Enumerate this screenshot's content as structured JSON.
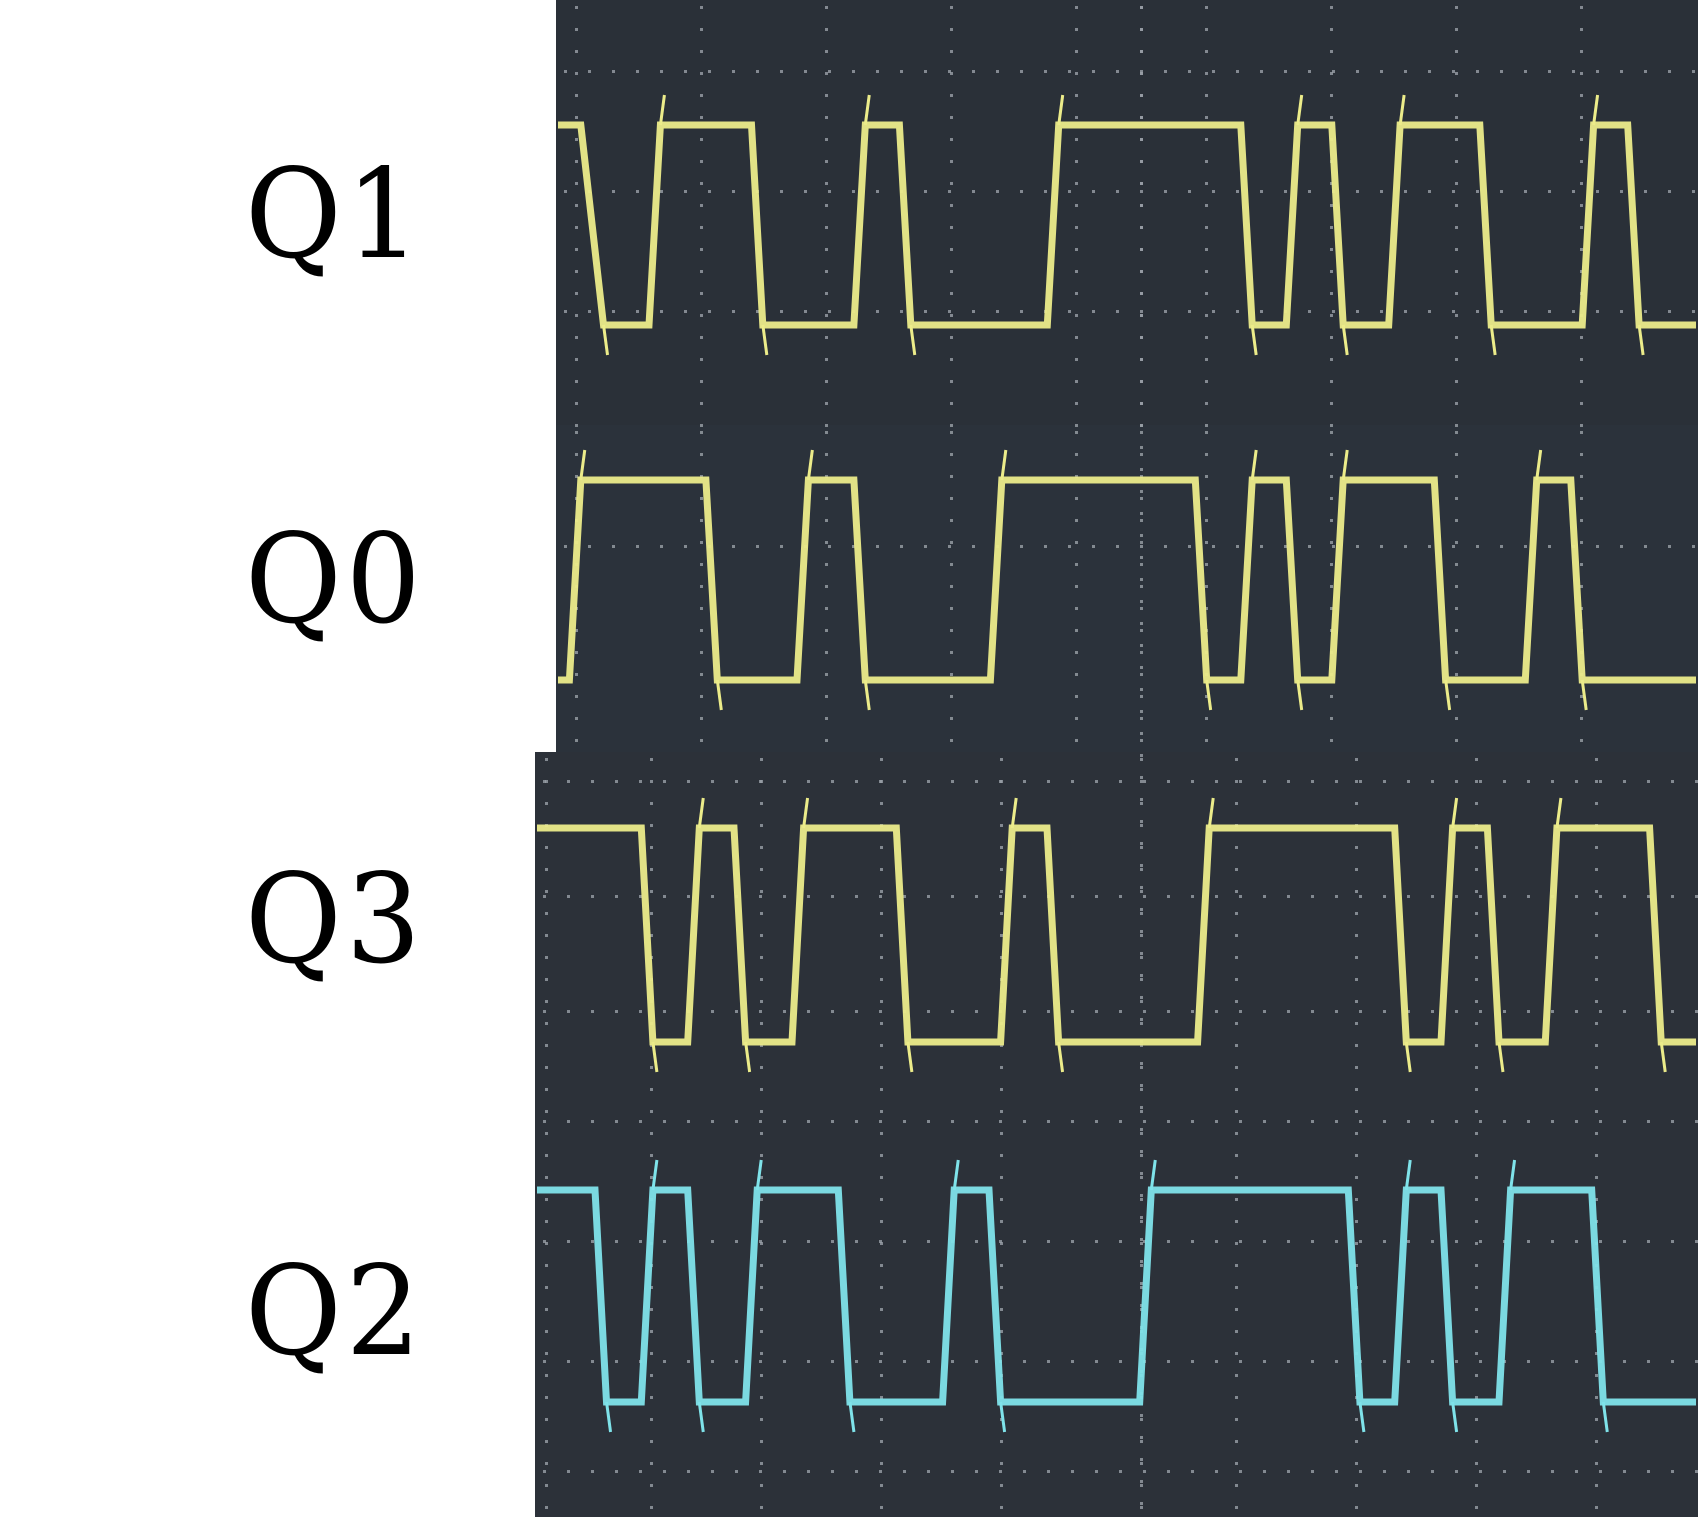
{
  "chart_data": {
    "type": "line",
    "title": "",
    "xlabel": "",
    "ylabel": "",
    "grid": true,
    "panels": [
      {
        "name": "Q1",
        "color": "#ecec8a",
        "segments": [
          [
            0.0,
            1
          ],
          [
            0.02,
            1
          ],
          [
            0.04,
            0
          ],
          [
            0.08,
            0
          ],
          [
            0.09,
            1
          ],
          [
            0.17,
            1
          ],
          [
            0.18,
            0
          ],
          [
            0.26,
            0
          ],
          [
            0.27,
            1
          ],
          [
            0.3,
            1
          ],
          [
            0.31,
            0
          ],
          [
            0.43,
            0
          ],
          [
            0.44,
            1
          ],
          [
            0.6,
            1
          ],
          [
            0.61,
            0
          ],
          [
            0.64,
            0
          ],
          [
            0.65,
            1
          ],
          [
            0.68,
            1
          ],
          [
            0.69,
            0
          ],
          [
            0.73,
            0
          ],
          [
            0.74,
            1
          ],
          [
            0.81,
            1
          ],
          [
            0.82,
            0
          ],
          [
            0.9,
            0
          ],
          [
            0.91,
            1
          ],
          [
            0.94,
            1
          ],
          [
            0.95,
            0
          ],
          [
            1.0,
            0
          ]
        ]
      },
      {
        "name": "Q0",
        "color": "#ecec8a",
        "segments": [
          [
            0.0,
            0
          ],
          [
            0.01,
            0
          ],
          [
            0.02,
            1
          ],
          [
            0.13,
            1
          ],
          [
            0.14,
            0
          ],
          [
            0.21,
            0
          ],
          [
            0.22,
            1
          ],
          [
            0.26,
            1
          ],
          [
            0.27,
            0
          ],
          [
            0.38,
            0
          ],
          [
            0.39,
            1
          ],
          [
            0.56,
            1
          ],
          [
            0.57,
            0
          ],
          [
            0.6,
            0
          ],
          [
            0.61,
            1
          ],
          [
            0.64,
            1
          ],
          [
            0.65,
            0
          ],
          [
            0.68,
            0
          ],
          [
            0.69,
            1
          ],
          [
            0.77,
            1
          ],
          [
            0.78,
            0
          ],
          [
            0.85,
            0
          ],
          [
            0.86,
            1
          ],
          [
            0.89,
            1
          ],
          [
            0.9,
            0
          ],
          [
            1.0,
            0
          ]
        ]
      },
      {
        "name": "Q3",
        "color": "#ecec8a",
        "segments": [
          [
            0.0,
            1
          ],
          [
            0.09,
            1
          ],
          [
            0.1,
            0
          ],
          [
            0.13,
            0
          ],
          [
            0.14,
            1
          ],
          [
            0.17,
            1
          ],
          [
            0.18,
            0
          ],
          [
            0.22,
            0
          ],
          [
            0.23,
            1
          ],
          [
            0.31,
            1
          ],
          [
            0.32,
            0
          ],
          [
            0.4,
            0
          ],
          [
            0.41,
            1
          ],
          [
            0.44,
            1
          ],
          [
            0.45,
            0
          ],
          [
            0.57,
            0
          ],
          [
            0.58,
            1
          ],
          [
            0.74,
            1
          ],
          [
            0.75,
            0
          ],
          [
            0.78,
            0
          ],
          [
            0.79,
            1
          ],
          [
            0.82,
            1
          ],
          [
            0.83,
            0
          ],
          [
            0.87,
            0
          ],
          [
            0.88,
            1
          ],
          [
            0.96,
            1
          ],
          [
            0.97,
            0
          ],
          [
            1.0,
            0
          ]
        ]
      },
      {
        "name": "Q2",
        "color": "#7fe3ea",
        "segments": [
          [
            0.0,
            1
          ],
          [
            0.05,
            1
          ],
          [
            0.06,
            0
          ],
          [
            0.09,
            0
          ],
          [
            0.1,
            1
          ],
          [
            0.13,
            1
          ],
          [
            0.14,
            0
          ],
          [
            0.18,
            0
          ],
          [
            0.19,
            1
          ],
          [
            0.26,
            1
          ],
          [
            0.27,
            0
          ],
          [
            0.35,
            0
          ],
          [
            0.36,
            1
          ],
          [
            0.39,
            1
          ],
          [
            0.4,
            0
          ],
          [
            0.52,
            0
          ],
          [
            0.53,
            1
          ],
          [
            0.7,
            1
          ],
          [
            0.71,
            0
          ],
          [
            0.74,
            0
          ],
          [
            0.75,
            1
          ],
          [
            0.78,
            1
          ],
          [
            0.79,
            0
          ],
          [
            0.83,
            0
          ],
          [
            0.84,
            1
          ],
          [
            0.91,
            1
          ],
          [
            0.92,
            0
          ],
          [
            1.0,
            0
          ]
        ]
      }
    ]
  }
}
